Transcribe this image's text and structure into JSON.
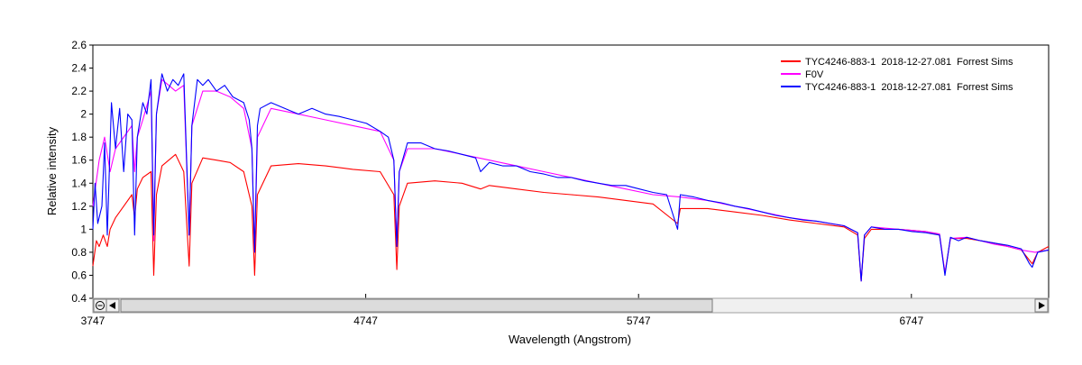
{
  "chart_data": {
    "type": "line",
    "xlabel": "Wavelength (Angstrom)",
    "ylabel": "Relative intensity",
    "xlim": [
      3747,
      7250
    ],
    "ylim": [
      0.4,
      2.6
    ],
    "x_ticks": [
      "3747",
      "4747",
      "5747",
      "6747"
    ],
    "y_ticks": [
      "0.4",
      "0.6",
      "0.8",
      "1",
      "1.2",
      "1.4",
      "1.6",
      "1.8",
      "2",
      "2.2",
      "2.4",
      "2.6"
    ],
    "grid": false,
    "legend_position": "top-right",
    "series": [
      {
        "name": "TYC4246-883-1  2018-12-27.081  Forrest Sims",
        "color": "#ff0000",
        "x": [
          3747,
          3760,
          3770,
          3785,
          3800,
          3810,
          3830,
          3860,
          3890,
          3900,
          3910,
          3930,
          3960,
          3970,
          3980,
          4000,
          4050,
          4080,
          4100,
          4110,
          4150,
          4200,
          4250,
          4300,
          4330,
          4340,
          4350,
          4400,
          4500,
          4600,
          4700,
          4800,
          4850,
          4861,
          4870,
          4900,
          5000,
          5100,
          5168,
          5200,
          5300,
          5400,
          5500,
          5600,
          5700,
          5800,
          5890,
          5900,
          6000,
          6100,
          6200,
          6300,
          6400,
          6500,
          6550,
          6563,
          6575,
          6600,
          6700,
          6800,
          6850,
          6870,
          6890,
          6950,
          7000,
          7050,
          7100,
          7150,
          7190,
          7210,
          7250
        ],
        "y": [
          0.68,
          0.9,
          0.85,
          0.95,
          0.85,
          1.0,
          1.1,
          1.2,
          1.3,
          1.1,
          1.35,
          1.45,
          1.5,
          0.6,
          1.3,
          1.55,
          1.65,
          1.5,
          0.68,
          1.4,
          1.62,
          1.6,
          1.58,
          1.5,
          1.2,
          0.6,
          1.3,
          1.55,
          1.57,
          1.55,
          1.52,
          1.5,
          1.3,
          0.65,
          1.2,
          1.4,
          1.42,
          1.4,
          1.35,
          1.38,
          1.35,
          1.32,
          1.3,
          1.28,
          1.25,
          1.22,
          1.05,
          1.18,
          1.18,
          1.15,
          1.12,
          1.08,
          1.05,
          1.02,
          0.95,
          0.55,
          0.92,
          1.0,
          1.0,
          0.98,
          0.95,
          0.62,
          0.92,
          0.92,
          0.9,
          0.88,
          0.85,
          0.82,
          0.7,
          0.8,
          0.85
        ]
      },
      {
        "name": "F0V",
        "color": "#ff00ff",
        "x": [
          3747,
          3770,
          3790,
          3810,
          3830,
          3860,
          3890,
          3900,
          3910,
          3930,
          3960,
          3970,
          3980,
          4000,
          4050,
          4080,
          4100,
          4110,
          4150,
          4200,
          4250,
          4300,
          4330,
          4340,
          4350,
          4400,
          4500,
          4600,
          4700,
          4800,
          4850,
          4861,
          4870,
          4900,
          5000,
          5100,
          5200,
          5300,
          5400,
          5500,
          5600,
          5700,
          5800,
          5900,
          6000,
          6100,
          6200,
          6300,
          6400,
          6500,
          6550,
          6563,
          6575,
          6600,
          6700,
          6800,
          6850,
          6870,
          6890,
          6950,
          7000,
          7050,
          7100,
          7150,
          7200,
          7250
        ],
        "y": [
          1.2,
          1.6,
          1.8,
          1.5,
          1.7,
          1.8,
          1.9,
          1.5,
          1.8,
          1.95,
          2.2,
          0.9,
          2.0,
          2.3,
          2.2,
          2.25,
          0.95,
          1.9,
          2.2,
          2.2,
          2.15,
          2.05,
          1.7,
          0.8,
          1.8,
          2.05,
          2.0,
          1.95,
          1.9,
          1.85,
          1.6,
          0.85,
          1.5,
          1.7,
          1.7,
          1.65,
          1.6,
          1.55,
          1.5,
          1.45,
          1.4,
          1.35,
          1.3,
          1.28,
          1.25,
          1.2,
          1.15,
          1.1,
          1.07,
          1.03,
          0.97,
          0.55,
          0.95,
          1.02,
          1.0,
          0.98,
          0.96,
          0.62,
          0.92,
          0.93,
          0.9,
          0.87,
          0.85,
          0.82,
          0.8,
          0.82
        ]
      },
      {
        "name": "TYC4246-883-1  2018-12-27.081  Forrest Sims",
        "color": "#0000ff",
        "x": [
          3747,
          3755,
          3765,
          3780,
          3790,
          3800,
          3815,
          3830,
          3845,
          3860,
          3875,
          3890,
          3900,
          3910,
          3930,
          3945,
          3960,
          3970,
          3980,
          4000,
          4020,
          4040,
          4060,
          4080,
          4100,
          4110,
          4130,
          4150,
          4170,
          4200,
          4230,
          4260,
          4300,
          4320,
          4330,
          4340,
          4350,
          4360,
          4400,
          4450,
          4500,
          4550,
          4600,
          4650,
          4700,
          4750,
          4800,
          4830,
          4850,
          4861,
          4870,
          4900,
          4950,
          5000,
          5050,
          5100,
          5150,
          5168,
          5200,
          5250,
          5300,
          5350,
          5400,
          5450,
          5500,
          5550,
          5600,
          5650,
          5700,
          5750,
          5800,
          5850,
          5890,
          5900,
          5950,
          6000,
          6050,
          6100,
          6150,
          6200,
          6250,
          6300,
          6350,
          6400,
          6450,
          6500,
          6550,
          6563,
          6575,
          6600,
          6650,
          6700,
          6750,
          6800,
          6850,
          6870,
          6890,
          6920,
          6950,
          7000,
          7050,
          7100,
          7150,
          7180,
          7190,
          7210,
          7250
        ],
        "y": [
          1.0,
          1.4,
          1.05,
          1.2,
          1.75,
          0.95,
          2.1,
          1.7,
          2.05,
          1.5,
          2.0,
          1.95,
          0.95,
          1.8,
          2.1,
          2.0,
          2.3,
          0.95,
          2.0,
          2.35,
          2.2,
          2.3,
          2.25,
          2.35,
          0.95,
          1.9,
          2.3,
          2.25,
          2.3,
          2.2,
          2.25,
          2.15,
          2.1,
          1.95,
          1.7,
          0.8,
          1.9,
          2.05,
          2.1,
          2.05,
          2.0,
          2.05,
          2.0,
          1.98,
          1.95,
          1.92,
          1.85,
          1.8,
          1.6,
          0.85,
          1.5,
          1.75,
          1.75,
          1.7,
          1.68,
          1.65,
          1.62,
          1.5,
          1.58,
          1.55,
          1.55,
          1.5,
          1.48,
          1.45,
          1.45,
          1.42,
          1.4,
          1.38,
          1.38,
          1.35,
          1.32,
          1.3,
          1.0,
          1.3,
          1.28,
          1.25,
          1.23,
          1.2,
          1.18,
          1.15,
          1.12,
          1.1,
          1.08,
          1.07,
          1.05,
          1.03,
          0.97,
          0.55,
          0.95,
          1.02,
          1.0,
          1.0,
          0.98,
          0.97,
          0.95,
          0.6,
          0.93,
          0.9,
          0.93,
          0.9,
          0.88,
          0.86,
          0.83,
          0.7,
          0.67,
          0.8,
          0.82
        ]
      }
    ]
  }
}
